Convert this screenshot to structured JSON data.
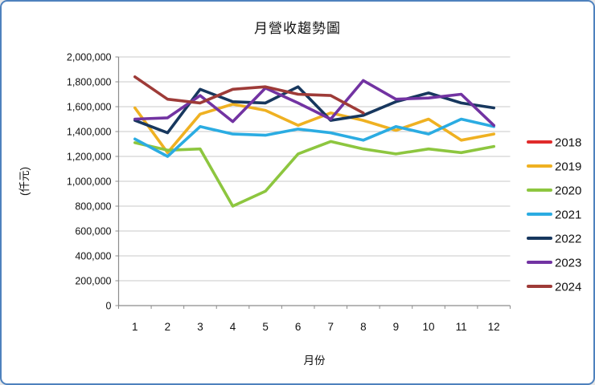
{
  "chart_data": {
    "type": "line",
    "title": "月營收趨勢圖",
    "xlabel": "月份",
    "ylabel": "(仟元)",
    "categories": [
      "1",
      "2",
      "3",
      "4",
      "5",
      "6",
      "7",
      "8",
      "9",
      "10",
      "11",
      "12"
    ],
    "ylim": [
      0,
      2000000
    ],
    "y_tick_step": 200000,
    "y_tick_labels": [
      "0",
      "200,000",
      "400,000",
      "600,000",
      "800,000",
      "1,000,000",
      "1,200,000",
      "1,400,000",
      "1,600,000",
      "1,800,000",
      "2,000,000"
    ],
    "grid": true,
    "legend_position": "right",
    "series": [
      {
        "name": "2018",
        "color": "#e02b2b",
        "values": [
          null,
          null,
          null,
          null,
          null,
          null,
          null,
          null,
          null,
          null,
          null,
          null
        ]
      },
      {
        "name": "2019",
        "color": "#efb122",
        "values": [
          1590000,
          1230000,
          1540000,
          1620000,
          1570000,
          1450000,
          1550000,
          1490000,
          1410000,
          1500000,
          1330000,
          1380000
        ]
      },
      {
        "name": "2020",
        "color": "#8dc63f",
        "values": [
          1310000,
          1250000,
          1260000,
          800000,
          920000,
          1220000,
          1320000,
          1260000,
          1220000,
          1260000,
          1230000,
          1280000
        ]
      },
      {
        "name": "2021",
        "color": "#2bace2",
        "values": [
          1340000,
          1200000,
          1440000,
          1380000,
          1370000,
          1420000,
          1390000,
          1330000,
          1440000,
          1380000,
          1500000,
          1440000
        ]
      },
      {
        "name": "2022",
        "color": "#17375e",
        "values": [
          1490000,
          1390000,
          1740000,
          1640000,
          1630000,
          1760000,
          1490000,
          1530000,
          1640000,
          1710000,
          1630000,
          1590000
        ]
      },
      {
        "name": "2023",
        "color": "#7233a2",
        "values": [
          1500000,
          1510000,
          1690000,
          1480000,
          1750000,
          1630000,
          1500000,
          1810000,
          1660000,
          1670000,
          1700000,
          1450000
        ]
      },
      {
        "name": "2024",
        "color": "#9e3b38",
        "values": [
          1840000,
          1660000,
          1630000,
          1740000,
          1760000,
          1700000,
          1690000,
          1550000,
          null,
          null,
          null,
          null
        ]
      }
    ],
    "colors": {
      "frame_border": "#4e81bd",
      "gridline": "#c9c9c9",
      "axis": "#8c8c8c",
      "background": "#ffffff"
    }
  }
}
